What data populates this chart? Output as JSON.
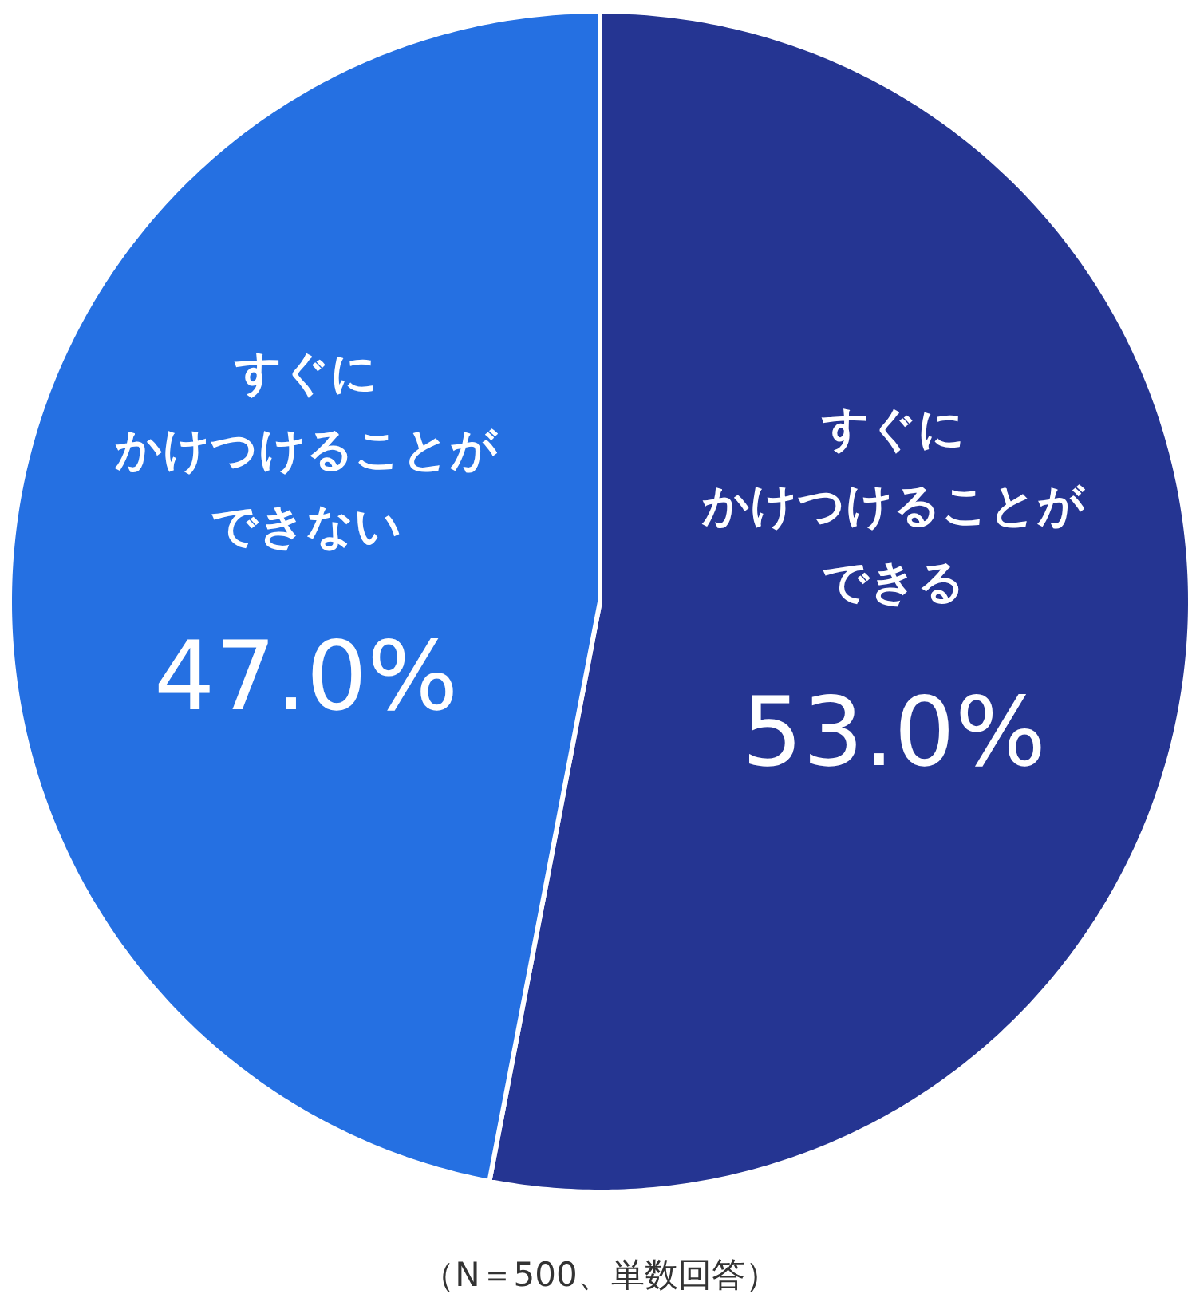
{
  "chart_data": {
    "type": "pie",
    "categories": [
      "すぐにかけつけることができる",
      "すぐにかけつけることができない"
    ],
    "values": [
      53.0,
      47.0
    ],
    "colors": [
      "#253592",
      "#2570e2"
    ],
    "value_labels": [
      "53.0%",
      "47.0%"
    ],
    "annotations": [
      "（N＝500、単数回答）"
    ]
  }
}
